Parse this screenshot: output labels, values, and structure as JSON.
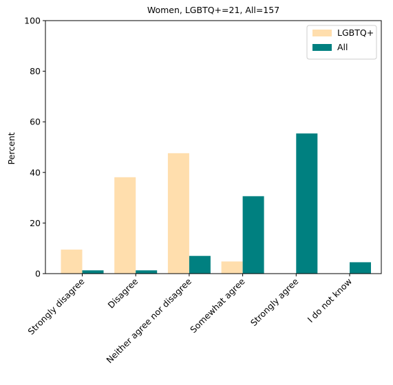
{
  "chart_data": {
    "type": "bar",
    "title": "Women, LGBTQ+=21, All=157",
    "xlabel": "",
    "ylabel": "Percent",
    "ylim": [
      0,
      100
    ],
    "yticks": [
      "0",
      "20",
      "40",
      "60",
      "80",
      "100"
    ],
    "categories": [
      "Strongly disagree",
      "Disagree",
      "Neither agree nor disagree",
      "Somewhat agree",
      "Strongly agree",
      "I do not know"
    ],
    "series": [
      {
        "name": "LGBTQ+",
        "color": "#ffdead",
        "values": [
          9.5,
          38.1,
          47.6,
          4.8,
          0,
          0
        ]
      },
      {
        "name": "All",
        "color": "#008080",
        "values": [
          1.3,
          1.3,
          7.0,
          30.6,
          55.4,
          4.5
        ]
      }
    ],
    "grid": false,
    "legend_position": "top-right"
  }
}
